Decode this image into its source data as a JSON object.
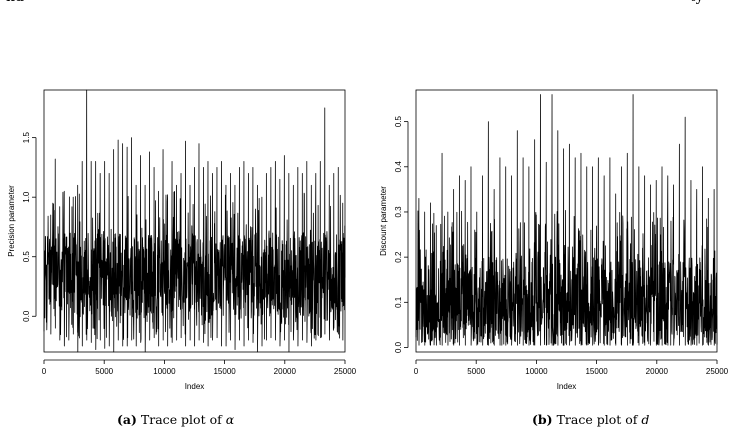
{
  "header_fragment": {
    "left": "nd",
    "right": "ty"
  },
  "chart_data": [
    {
      "type": "line",
      "title": "",
      "xlabel": "Index",
      "ylabel": "Precision parameter",
      "xlim": [
        0,
        25000
      ],
      "ylim": [
        -0.3,
        1.9
      ],
      "xticks": [
        0,
        5000,
        10000,
        15000,
        20000,
        25000
      ],
      "xtick_labels": [
        "0",
        "5000",
        "10000",
        "15000",
        "20000",
        "25000"
      ],
      "yticks": [
        0.0,
        0.5,
        1.0,
        1.5
      ],
      "ytick_labels": [
        "0.0",
        "0.5",
        "1.0",
        "1.5"
      ],
      "grid": false,
      "n_iterations": 25000,
      "band": {
        "low": 0.0,
        "high": 0.7,
        "center": 0.33
      },
      "series": [
        {
          "values": [
            0.3,
            0.85,
            1.32,
            0.92,
            1.05,
            0.2,
            1.0,
            1.1,
            1.3,
            1.9,
            1.3,
            1.3,
            1.2,
            1.3,
            1.2,
            1.4,
            1.48,
            1.45,
            1.42,
            1.5,
            1.1,
            1.35,
            1.1,
            1.38,
            1.25,
            1.05,
            1.4,
            1.02,
            1.3,
            1.1,
            1.2,
            1.47,
            1.1,
            1.25,
            1.45,
            1.25,
            1.3,
            1.2,
            1.25,
            1.3,
            1.1,
            1.2,
            1.1,
            1.25,
            1.3,
            1.2,
            1.25,
            1.1,
            1.0,
            1.2,
            1.25,
            1.3,
            1.15,
            1.35,
            1.2,
            1.1,
            1.25,
            1.2,
            1.3,
            1.1,
            1.2,
            1.3,
            1.75,
            1.1,
            1.2,
            1.25,
            0.95
          ],
          "min_values": [
            -0.05,
            -0.15,
            -0.1,
            -0.2,
            -0.25,
            -0.2,
            -0.15,
            -0.3,
            -0.25,
            -0.2,
            -0.22,
            -0.28,
            -0.2,
            -0.27,
            -0.25,
            -0.3,
            -0.2,
            -0.25,
            -0.25,
            -0.2,
            -0.25,
            -0.22,
            -0.3,
            -0.2,
            -0.18,
            -0.25,
            -0.2,
            -0.25,
            -0.22,
            -0.2,
            -0.18,
            -0.25,
            -0.2,
            -0.25,
            -0.2,
            -0.22,
            -0.25,
            -0.2,
            -0.18,
            -0.25,
            -0.25,
            -0.2,
            -0.28,
            -0.2,
            -0.25,
            -0.2,
            -0.22,
            -0.3,
            -0.25,
            -0.2,
            -0.18,
            -0.2,
            -0.25,
            -0.2,
            -0.3,
            -0.2,
            -0.25,
            -0.2,
            -0.22,
            -0.25,
            -0.2,
            -0.18,
            -0.15,
            -0.2,
            -0.1,
            -0.15,
            -0.2
          ]
        }
      ]
    },
    {
      "type": "line",
      "title": "",
      "xlabel": "Index",
      "ylabel": "Discount parameter",
      "xlim": [
        0,
        25000
      ],
      "ylim": [
        -0.01,
        0.57
      ],
      "xticks": [
        0,
        5000,
        10000,
        15000,
        20000,
        25000
      ],
      "xtick_labels": [
        "0",
        "5000",
        "10000",
        "15000",
        "20000",
        "25000"
      ],
      "yticks": [
        0.0,
        0.1,
        0.2,
        0.3,
        0.4,
        0.5
      ],
      "ytick_labels": [
        "0.0",
        "0.1",
        "0.2",
        "0.3",
        "0.4",
        "0.5"
      ],
      "grid": false,
      "n_iterations": 25000,
      "band": {
        "low": 0.005,
        "high": 0.2,
        "center": 0.08
      },
      "series": [
        {
          "values": [
            0.33,
            0.3,
            0.32,
            0.27,
            0.43,
            0.3,
            0.35,
            0.38,
            0.37,
            0.4,
            0.3,
            0.38,
            0.5,
            0.35,
            0.42,
            0.4,
            0.38,
            0.48,
            0.42,
            0.4,
            0.46,
            0.56,
            0.41,
            0.56,
            0.48,
            0.44,
            0.45,
            0.42,
            0.43,
            0.4,
            0.4,
            0.42,
            0.38,
            0.42,
            0.34,
            0.4,
            0.43,
            0.56,
            0.4,
            0.38,
            0.36,
            0.37,
            0.4,
            0.38,
            0.36,
            0.45,
            0.51,
            0.37,
            0.35,
            0.4,
            0.33,
            0.35
          ]
        }
      ]
    }
  ],
  "captions": [
    {
      "label": "(a)",
      "text": "Trace plot of",
      "symbol": "α"
    },
    {
      "label": "(b)",
      "text": "Trace plot of",
      "symbol": "d"
    }
  ]
}
